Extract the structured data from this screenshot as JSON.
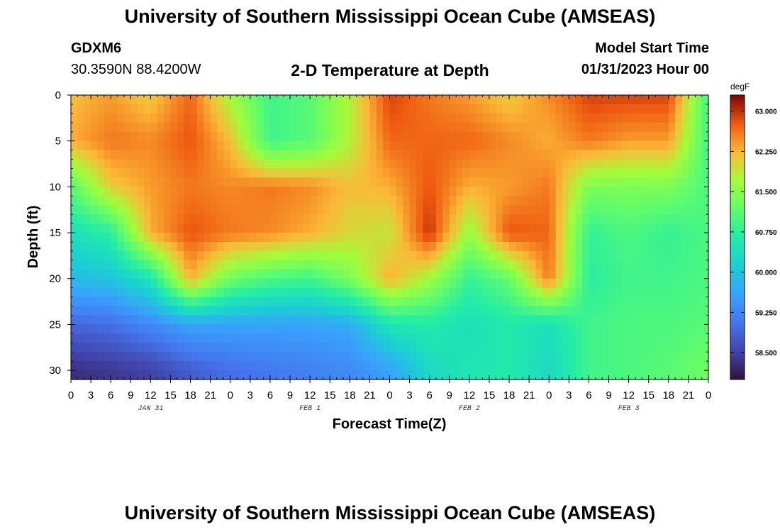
{
  "header": {
    "title": "University of Southern Mississippi Ocean Cube (AMSEAS)",
    "station": "GDXM6",
    "coords": "30.3590N  88.4200W",
    "subtitle": "2-D Temperature at Depth",
    "model_label": "Model Start Time",
    "model_time": "01/31/2023 Hour 00"
  },
  "footer": {
    "title": "University of Southern Mississippi Ocean Cube (AMSEAS)"
  },
  "chart_data": {
    "type": "heatmap",
    "title": "2-D Temperature at Depth",
    "xlabel": "Forecast Time(Z)",
    "ylabel": "Depth (ft)",
    "x_ticks": [
      "0",
      "3",
      "6",
      "9",
      "12",
      "15",
      "18",
      "21",
      "0",
      "3",
      "6",
      "9",
      "12",
      "15",
      "18",
      "21",
      "0",
      "3",
      "6",
      "9",
      "12",
      "15",
      "18",
      "21",
      "0",
      "3",
      "6",
      "9",
      "12",
      "15",
      "18",
      "21",
      "0"
    ],
    "date_labels": [
      {
        "label": "JAN 31",
        "at_hour": 12
      },
      {
        "label": "FEB 1",
        "at_hour": 36
      },
      {
        "label": "FEB 2",
        "at_hour": 60
      },
      {
        "label": "FEB 3",
        "at_hour": 84
      }
    ],
    "xlim": [
      0,
      96
    ],
    "ylim": [
      0,
      31
    ],
    "y_ticks": [
      "0",
      "5",
      "10",
      "15",
      "20",
      "25",
      "30"
    ],
    "colorbar": {
      "unit": "degF",
      "range": [
        58.0,
        63.3
      ],
      "ticks": [
        "63.000",
        "62.250",
        "61.500",
        "60.750",
        "60.000",
        "59.250",
        "58.500"
      ]
    },
    "hours": [
      0,
      6,
      12,
      18,
      24,
      30,
      36,
      42,
      48,
      54,
      60,
      66,
      72,
      78,
      84,
      90,
      96
    ],
    "depths": [
      0,
      5,
      10,
      15,
      20,
      25,
      30
    ],
    "temperature_degF": [
      [
        62.2,
        62.4,
        62.1,
        62.7,
        61.7,
        60.9,
        61.1,
        61.8,
        62.9,
        62.6,
        62.4,
        62.1,
        62.5,
        62.9,
        62.9,
        62.9,
        60.9
      ],
      [
        62.3,
        62.6,
        62.5,
        62.8,
        62.2,
        60.9,
        61.1,
        61.8,
        62.7,
        62.7,
        62.7,
        62.5,
        62.3,
        62.6,
        62.4,
        62.4,
        60.9
      ],
      [
        61.1,
        62.1,
        62.4,
        62.6,
        62.5,
        62.6,
        62.5,
        62.2,
        62.3,
        62.8,
        62.3,
        62.4,
        62.6,
        61.4,
        61.4,
        61.4,
        61.0
      ],
      [
        60.4,
        60.7,
        62.3,
        62.8,
        62.6,
        62.5,
        62.3,
        62.0,
        61.9,
        63.0,
        61.6,
        62.8,
        62.7,
        60.8,
        61.0,
        60.8,
        61.0
      ],
      [
        59.9,
        60.0,
        60.5,
        62.3,
        61.3,
        61.0,
        60.9,
        61.4,
        62.3,
        61.7,
        60.8,
        61.2,
        62.6,
        60.7,
        60.9,
        60.9,
        61.0
      ],
      [
        58.9,
        59.0,
        59.3,
        59.6,
        59.6,
        59.6,
        59.6,
        59.7,
        60.5,
        60.6,
        60.4,
        60.6,
        60.4,
        60.9,
        61.0,
        61.0,
        61.1
      ],
      [
        58.3,
        58.4,
        58.5,
        58.8,
        59.0,
        59.1,
        59.2,
        59.3,
        59.6,
        60.3,
        60.5,
        60.6,
        60.3,
        60.9,
        61.0,
        61.1,
        61.3
      ]
    ]
  }
}
